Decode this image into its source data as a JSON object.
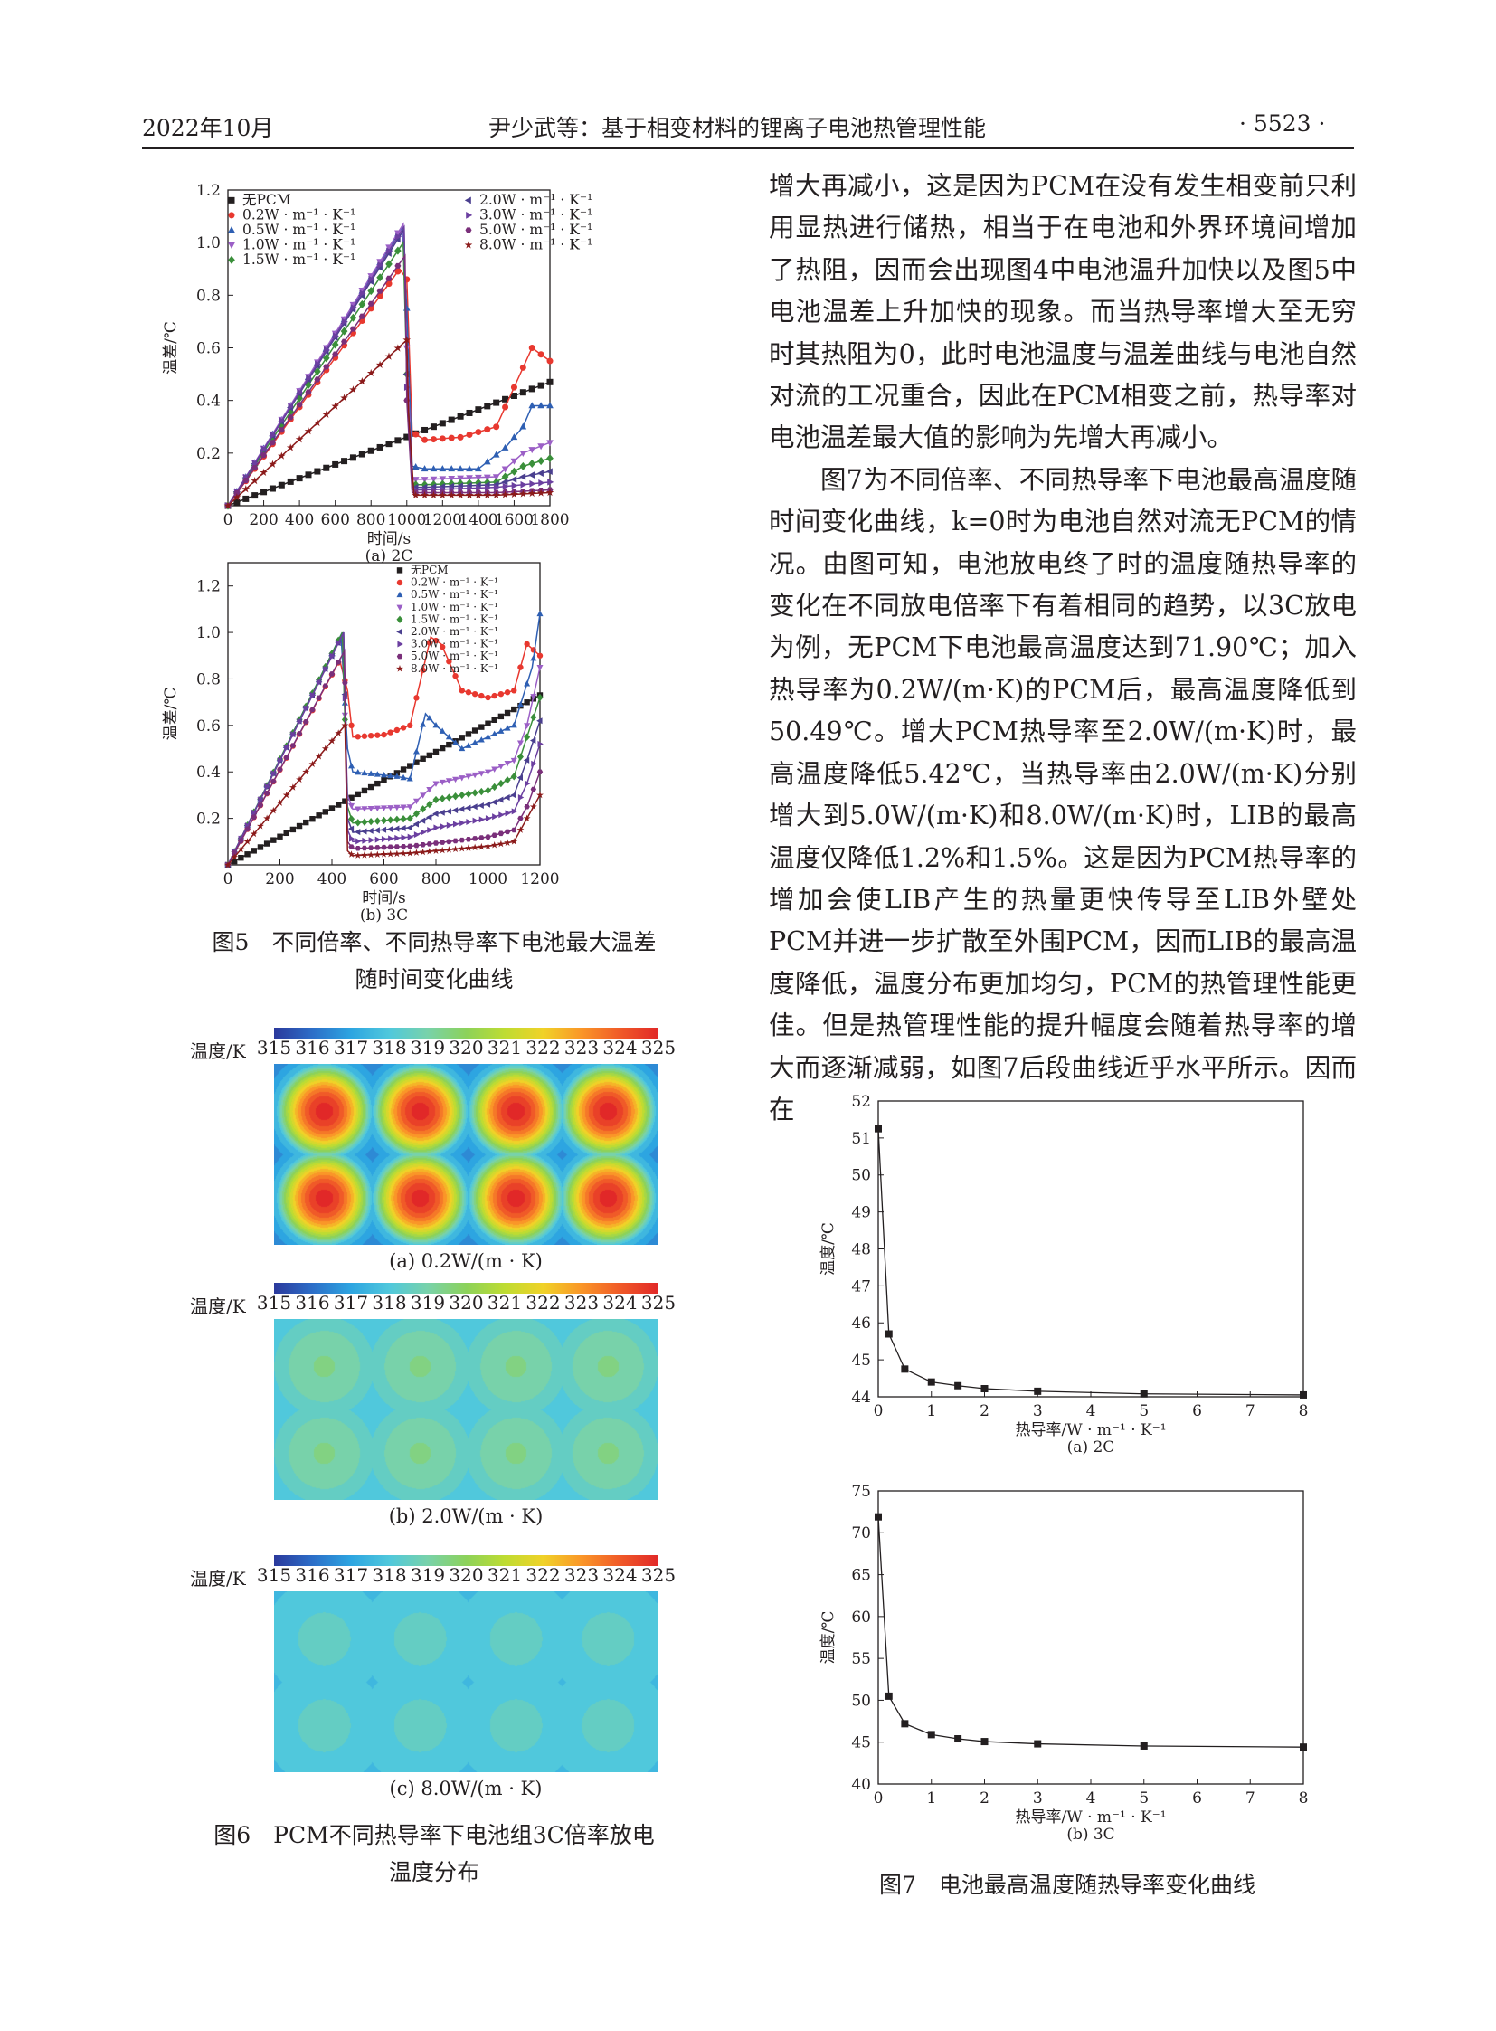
{
  "header": {
    "date": "2022年10月",
    "title": "尹少武等：基于相变材料的锂离子电池热管理性能",
    "page": "· 5523 ·"
  },
  "body_paragraphs": [
    {
      "indent": false,
      "text": "增大再减小，这是因为PCM在没有发生相变前只利用显热进行储热，相当于在电池和外界环境间增加了热阻，因而会出现图4中电池温升加快以及图5中电池温差上升加快的现象。而当热导率增大至无穷时其热阻为0，此时电池温度与温差曲线与电池自然对流的工况重合，因此在PCM相变之前，热导率对电池温差最大值的影响为先增大再减小。"
    },
    {
      "indent": true,
      "text": "图7为不同倍率、不同热导率下电池最高温度随时间变化曲线，k=0时为电池自然对流无PCM的情况。由图可知，电池放电终了时的温度随热导率的变化在不同放电倍率下有着相同的趋势，以3C放电为例，无PCM下电池最高温度达到71.90℃；加入热导率为0.2W/(m·K)的PCM后，最高温度降低到50.49℃。增大PCM热导率至2.0W/(m·K)时，最高温度降低5.42℃，当热导率由2.0W/(m·K)分别增大到5.0W/(m·K)和8.0W/(m·K)时，LIB的最高温度仅降低1.2%和1.5%。这是因为PCM热导率的增加会使LIB产生的热量更快传导至LIB外壁处PCM并进一步扩散至外围PCM，因而LIB的最高温度降低，温度分布更加均匀，PCM的热管理性能更佳。但是热管理性能的提升幅度会随着热导率的增大而逐渐减弱，如图7后段曲线近乎水平所示。因而在"
    }
  ],
  "fig5": {
    "caption_line1": "图5　不同倍率、不同热导率下电池最大温差",
    "caption_line2": "随时间变化曲线",
    "legend": [
      "无PCM",
      "0.2W · m⁻¹ · K⁻¹",
      "0.5W · m⁻¹ · K⁻¹",
      "1.0W · m⁻¹ · K⁻¹",
      "1.5W · m⁻¹ · K⁻¹",
      "2.0W · m⁻¹ · K⁻¹",
      "3.0W · m⁻¹ · K⁻¹",
      "5.0W · m⁻¹ · K⁻¹",
      "8.0W · m⁻¹ · K⁻¹"
    ],
    "colors": [
      "#231f20",
      "#e8382f",
      "#2e5fb3",
      "#9b5fc6",
      "#3a8f3a",
      "#4a3f8f",
      "#6b3fa0",
      "#7a2f7a",
      "#8b1a1a"
    ]
  },
  "fig6": {
    "caption_line1": "图6　PCM不同热导率下电池组3C倍率放电",
    "caption_line2": "温度分布",
    "colorbar_label": "温度/K",
    "colorbar_ticks": [
      "315",
      "316",
      "317",
      "318",
      "319",
      "320",
      "321",
      "322",
      "323",
      "324",
      "325"
    ],
    "panels": [
      {
        "label": "(a) 0.2W/(m · K)",
        "center_temp": 325,
        "edge_temp": 317.6,
        "background_temp": 316.4
      },
      {
        "label": "(b) 2.0W/(m · K)",
        "center_temp": 319.3,
        "edge_temp": 318.3,
        "background_temp": 317.9
      },
      {
        "label": "(c) 8.0W/(m · K)",
        "center_temp": 318.4,
        "edge_temp": 317.9,
        "background_temp": 317.7
      }
    ]
  },
  "fig7": {
    "caption": "图7　电池最高温度随热导率变化曲线"
  },
  "chart_data": [
    {
      "id": "fig5a",
      "type": "line",
      "sublabel": "(a) 2C",
      "xlabel": "时间/s",
      "ylabel": "温差/℃",
      "xlim": [
        0,
        1800
      ],
      "ylim": [
        0,
        1.2
      ],
      "xticks": [
        0,
        200,
        400,
        600,
        800,
        1000,
        1200,
        1400,
        1600,
        1800
      ],
      "yticks": [
        0.2,
        0.4,
        0.6,
        0.8,
        1.0,
        1.2
      ],
      "legend_position": "top-left",
      "series": [
        {
          "name": "无PCM",
          "x": [
            0,
            1800
          ],
          "y": [
            0,
            0.47
          ]
        },
        {
          "name": "0.2W · m⁻¹ · K⁻¹",
          "x": [
            0,
            960,
            1000,
            1030,
            1100,
            1300,
            1500,
            1600,
            1700,
            1800
          ],
          "y": [
            0,
            0.9,
            0.86,
            0.28,
            0.25,
            0.26,
            0.3,
            0.45,
            0.6,
            0.55
          ]
        },
        {
          "name": "0.5W · m⁻¹ · K⁻¹",
          "x": [
            0,
            975,
            1000,
            1030,
            1100,
            1400,
            1550,
            1650,
            1700,
            1800
          ],
          "y": [
            0,
            1.06,
            0.75,
            0.15,
            0.14,
            0.14,
            0.22,
            0.3,
            0.38,
            0.38
          ]
        },
        {
          "name": "1.0W · m⁻¹ · K⁻¹",
          "x": [
            0,
            980,
            1000,
            1030,
            1100,
            1500,
            1650,
            1800
          ],
          "y": [
            0,
            1.07,
            0.6,
            0.1,
            0.1,
            0.11,
            0.2,
            0.24
          ]
        },
        {
          "name": "1.5W · m⁻¹ · K⁻¹",
          "x": [
            0,
            980,
            1000,
            1030,
            1100,
            1500,
            1650,
            1800
          ],
          "y": [
            0,
            1.0,
            0.5,
            0.08,
            0.08,
            0.09,
            0.15,
            0.18
          ]
        },
        {
          "name": "2.0W · m⁻¹ · K⁻¹",
          "x": [
            0,
            985,
            1000,
            1030,
            1100,
            1500,
            1650,
            1800
          ],
          "y": [
            0,
            1.05,
            0.5,
            0.07,
            0.07,
            0.08,
            0.11,
            0.13
          ]
        },
        {
          "name": "3.0W · m⁻¹ · K⁻¹",
          "x": [
            0,
            985,
            1000,
            1030,
            1100,
            1500,
            1650,
            1800
          ],
          "y": [
            0,
            1.06,
            0.45,
            0.06,
            0.06,
            0.07,
            0.08,
            0.09
          ]
        },
        {
          "name": "5.0W · m⁻¹ · K⁻¹",
          "x": [
            0,
            990,
            1000,
            1030,
            1100,
            1500,
            1800
          ],
          "y": [
            0,
            0.95,
            0.4,
            0.05,
            0.05,
            0.05,
            0.06
          ]
        },
        {
          "name": "8.0W · m⁻¹ · K⁻¹",
          "x": [
            0,
            1000,
            1010,
            1040,
            1100,
            1500,
            1800
          ],
          "y": [
            0,
            0.63,
            0.35,
            0.04,
            0.04,
            0.04,
            0.05
          ]
        }
      ]
    },
    {
      "id": "fig5b",
      "type": "line",
      "sublabel": "(b) 3C",
      "xlabel": "时间/s",
      "ylabel": "温差/℃",
      "xlim": [
        0,
        1200
      ],
      "ylim": [
        0,
        1.3
      ],
      "xticks": [
        0,
        200,
        400,
        600,
        800,
        1000,
        1200
      ],
      "yticks": [
        0.2,
        0.4,
        0.6,
        0.8,
        1.0,
        1.2
      ],
      "legend_position": "top-left",
      "series": [
        {
          "name": "无PCM",
          "x": [
            0,
            1200
          ],
          "y": [
            0,
            0.73
          ]
        },
        {
          "name": "0.2W · m⁻¹ · K⁻¹",
          "x": [
            0,
            430,
            460,
            480,
            600,
            700,
            780,
            820,
            900,
            1000,
            1100,
            1150,
            1200
          ],
          "y": [
            0,
            0.88,
            0.75,
            0.55,
            0.56,
            0.6,
            0.98,
            0.95,
            0.75,
            0.72,
            0.75,
            0.95,
            0.9
          ]
        },
        {
          "name": "0.5W · m⁻¹ · K⁻¹",
          "x": [
            0,
            435,
            460,
            480,
            650,
            700,
            760,
            800,
            900,
            1000,
            1100,
            1170,
            1200
          ],
          "y": [
            0,
            0.99,
            0.5,
            0.4,
            0.38,
            0.37,
            0.65,
            0.6,
            0.5,
            0.55,
            0.6,
            0.85,
            1.08
          ]
        },
        {
          "name": "1.0W · m⁻¹ · K⁻¹",
          "x": [
            0,
            440,
            460,
            480,
            700,
            800,
            1000,
            1100,
            1150,
            1200
          ],
          "y": [
            0,
            0.99,
            0.3,
            0.24,
            0.25,
            0.35,
            0.4,
            0.45,
            0.6,
            0.85
          ]
        },
        {
          "name": "1.5W · m⁻¹ · K⁻¹",
          "x": [
            0,
            440,
            460,
            480,
            700,
            800,
            1000,
            1100,
            1150,
            1200
          ],
          "y": [
            0,
            1.0,
            0.25,
            0.18,
            0.2,
            0.28,
            0.32,
            0.38,
            0.55,
            0.72
          ]
        },
        {
          "name": "2.0W · m⁻¹ · K⁻¹",
          "x": [
            0,
            445,
            460,
            480,
            700,
            800,
            1000,
            1100,
            1150,
            1200
          ],
          "y": [
            0,
            1.0,
            0.2,
            0.14,
            0.16,
            0.22,
            0.26,
            0.3,
            0.45,
            0.62
          ]
        },
        {
          "name": "3.0W · m⁻¹ · K⁻¹",
          "x": [
            0,
            445,
            460,
            480,
            700,
            800,
            1000,
            1100,
            1150,
            1200
          ],
          "y": [
            0,
            1.0,
            0.15,
            0.1,
            0.12,
            0.16,
            0.2,
            0.23,
            0.35,
            0.52
          ]
        },
        {
          "name": "5.0W · m⁻¹ · K⁻¹",
          "x": [
            0,
            448,
            460,
            480,
            700,
            1000,
            1100,
            1150,
            1200
          ],
          "y": [
            0,
            0.92,
            0.1,
            0.07,
            0.08,
            0.12,
            0.15,
            0.25,
            0.4
          ]
        },
        {
          "name": "8.0W · m⁻¹ · K⁻¹",
          "x": [
            0,
            450,
            460,
            480,
            700,
            1000,
            1100,
            1150,
            1200
          ],
          "y": [
            0,
            0.6,
            0.06,
            0.04,
            0.05,
            0.08,
            0.1,
            0.2,
            0.3
          ]
        }
      ]
    },
    {
      "id": "fig7a",
      "type": "line",
      "sublabel": "(a) 2C",
      "xlabel": "热导率/W · m⁻¹ · K⁻¹",
      "ylabel": "温度/℃",
      "xlim": [
        0,
        8
      ],
      "ylim": [
        44,
        52
      ],
      "xticks": [
        0,
        1,
        2,
        3,
        4,
        5,
        6,
        7,
        8
      ],
      "yticks": [
        44,
        45,
        46,
        47,
        48,
        49,
        50,
        51,
        52
      ],
      "series": [
        {
          "x": [
            0,
            0.2,
            0.5,
            1.0,
            1.5,
            2.0,
            3.0,
            5.0,
            8.0
          ],
          "y": [
            51.25,
            45.7,
            44.75,
            44.4,
            44.3,
            44.22,
            44.15,
            44.08,
            44.05
          ]
        }
      ]
    },
    {
      "id": "fig7b",
      "type": "line",
      "sublabel": "(b) 3C",
      "xlabel": "热导率/W · m⁻¹ · K⁻¹",
      "ylabel": "温度/℃",
      "xlim": [
        0,
        8
      ],
      "ylim": [
        40,
        75
      ],
      "xticks": [
        0,
        1,
        2,
        3,
        4,
        5,
        6,
        7,
        8
      ],
      "yticks": [
        40,
        45,
        50,
        55,
        60,
        65,
        70,
        75
      ],
      "series": [
        {
          "x": [
            0,
            0.2,
            0.5,
            1.0,
            1.5,
            2.0,
            3.0,
            5.0,
            8.0
          ],
          "y": [
            71.9,
            50.49,
            47.2,
            45.9,
            45.4,
            45.07,
            44.8,
            44.54,
            44.41
          ]
        }
      ]
    }
  ]
}
